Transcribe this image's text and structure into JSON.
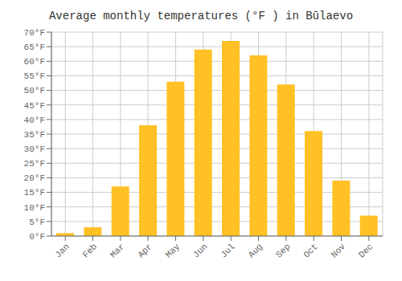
{
  "chart_data": {
    "type": "bar",
    "title": "Average monthly temperatures (°F ) in Būlaevo",
    "categories": [
      "Jan",
      "Feb",
      "Mar",
      "Apr",
      "May",
      "Jun",
      "Jul",
      "Aug",
      "Sep",
      "Oct",
      "Nov",
      "Dec"
    ],
    "values": [
      1,
      3,
      17,
      38,
      53,
      64,
      67,
      62,
      52,
      36,
      19,
      7
    ],
    "color": "#FFC125",
    "ylim": [
      0,
      70
    ],
    "yticks": [
      {
        "value": 0,
        "label": "0°F"
      },
      {
        "value": 5,
        "label": "5°F"
      },
      {
        "value": 10,
        "label": "10°F"
      },
      {
        "value": 15,
        "label": "15°F"
      },
      {
        "value": 20,
        "label": "20°F"
      },
      {
        "value": 25,
        "label": "25°F"
      },
      {
        "value": 30,
        "label": "30°F"
      },
      {
        "value": 35,
        "label": "35°F"
      },
      {
        "value": 40,
        "label": "40°F"
      },
      {
        "value": 45,
        "label": "45°F"
      },
      {
        "value": 50,
        "label": "50°F"
      },
      {
        "value": 55,
        "label": "55°F"
      },
      {
        "value": 60,
        "label": "60°F"
      },
      {
        "value": 65,
        "label": "65°F"
      },
      {
        "value": 70,
        "label": "70°F"
      }
    ],
    "grid": true
  }
}
